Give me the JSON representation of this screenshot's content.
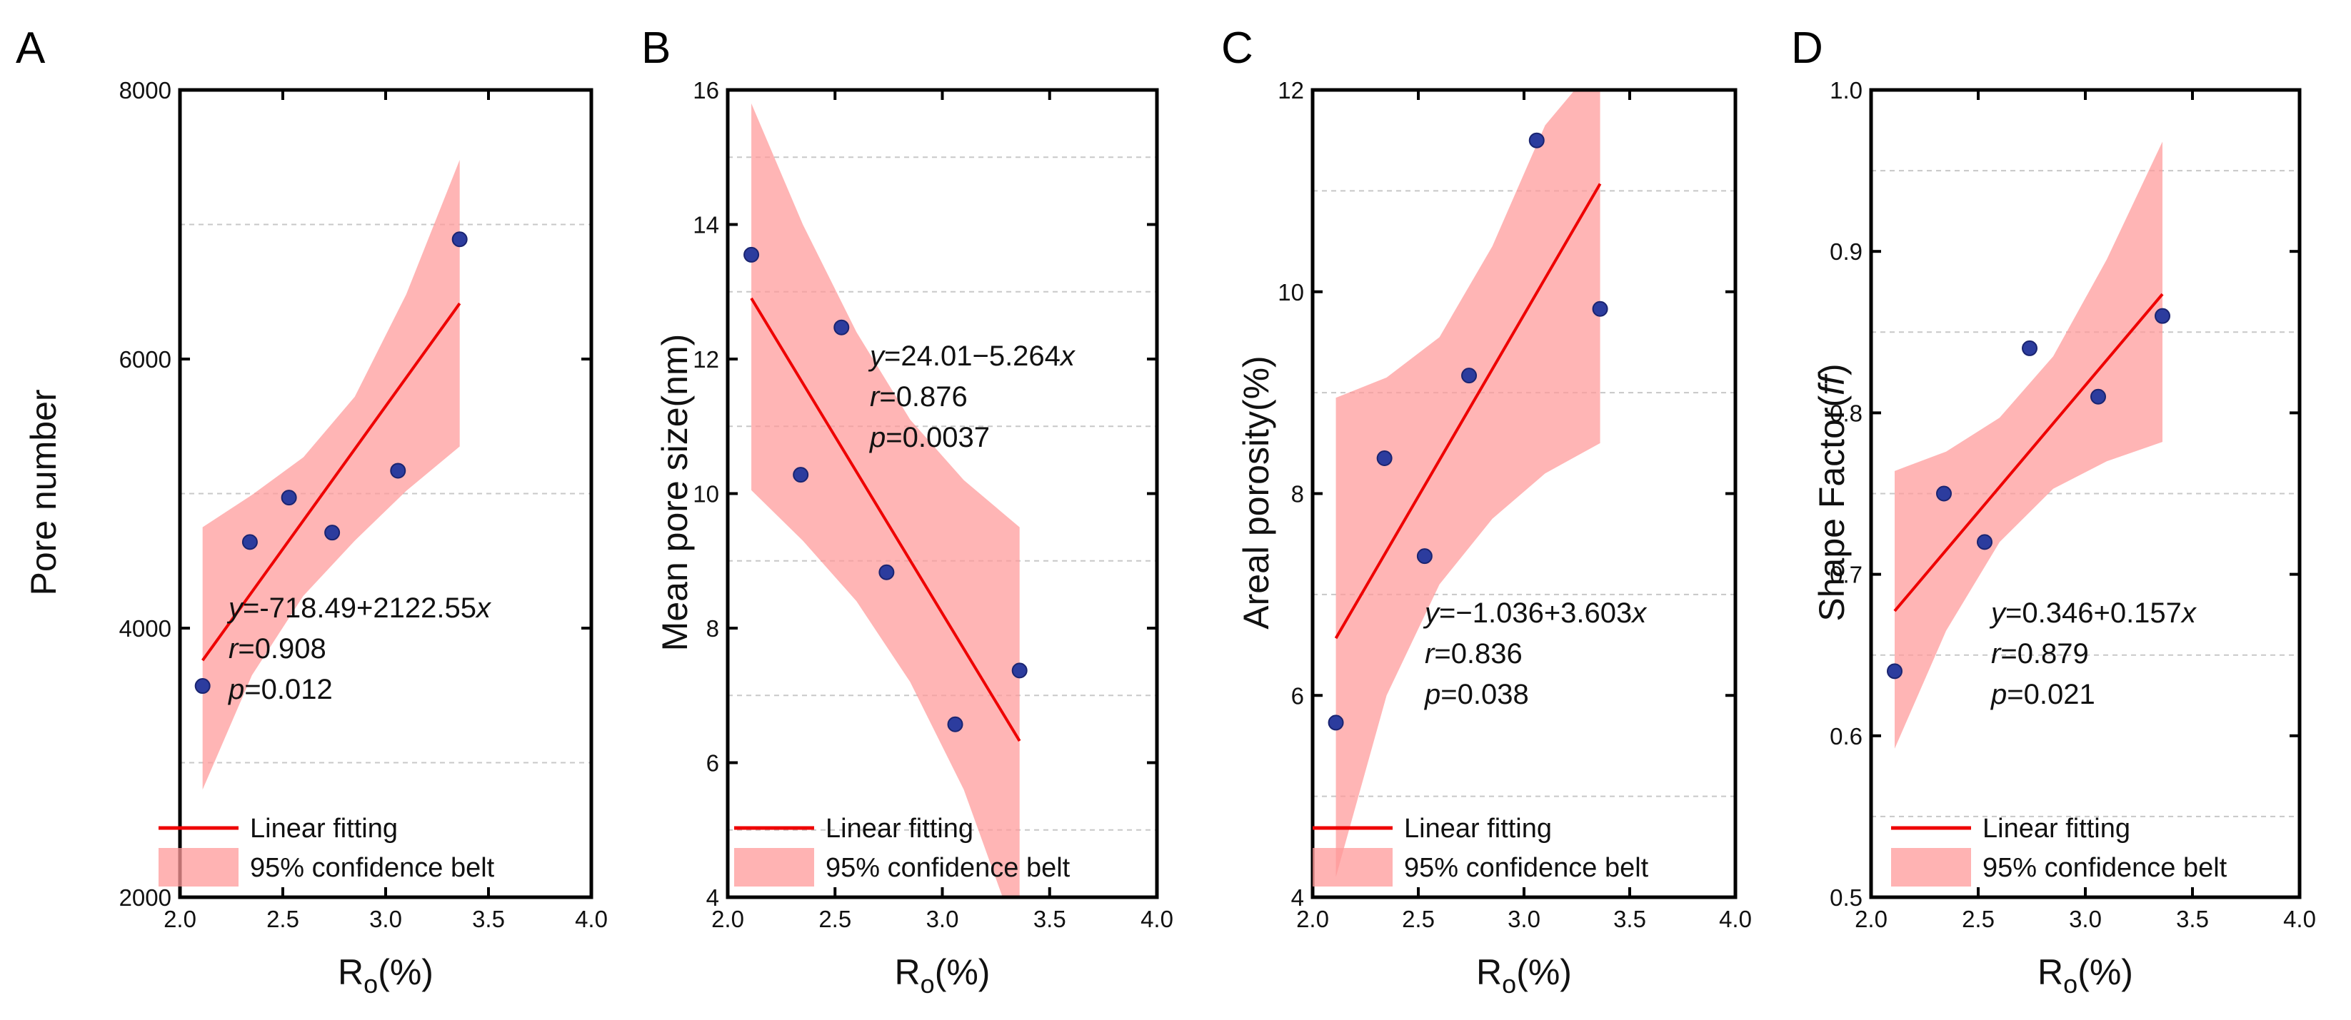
{
  "colors": {
    "fit_line": "#ee0000",
    "confidence_band": "#ff9999",
    "points": "#2c3c9e",
    "axis": "#000000",
    "grid": "#c8c8c8"
  },
  "chart_data": [
    {
      "panel": "A",
      "type": "scatter",
      "xlabel_main": "R",
      "xlabel_sub": "o",
      "xlabel_tail": "(%)",
      "ylabel": "Pore number",
      "xlim": [
        2.0,
        4.0
      ],
      "ylim": [
        2000,
        8000
      ],
      "xticks": [
        2.0,
        2.5,
        3.0,
        3.5,
        4.0
      ],
      "xtick_labels": [
        "2.0",
        "2.5",
        "3.0",
        "3.5",
        "4.0"
      ],
      "yticks": [
        2000,
        4000,
        6000,
        8000
      ],
      "ytick_labels": [
        "2000",
        "4000",
        "6000",
        "8000"
      ],
      "ygrid": [
        3000,
        5000,
        7000
      ],
      "points": {
        "x": [
          2.11,
          2.34,
          2.53,
          2.74,
          3.06,
          3.36
        ],
        "y": [
          3570,
          4640,
          4970,
          4710,
          5170,
          6890
        ]
      },
      "fit": {
        "intercept": -718.49,
        "slope": 2122.55,
        "x_range": [
          2.11,
          3.36
        ]
      },
      "band": {
        "x": [
          2.11,
          2.35,
          2.6,
          2.85,
          3.1,
          3.36
        ],
        "lower": [
          2800,
          3650,
          4240,
          4650,
          5020,
          5350
        ],
        "upper": [
          4750,
          4990,
          5270,
          5720,
          6480,
          7480
        ]
      },
      "annotation": {
        "equation": [
          "y",
          "=-718.49+2122.55",
          "x"
        ],
        "r_label": "r",
        "r_value": "=0.908",
        "p_label": "p",
        "p_value": "=0.012"
      },
      "legend": {
        "line_label": "Linear fitting",
        "band_label": "95% confidence belt"
      }
    },
    {
      "panel": "B",
      "type": "scatter",
      "xlabel_main": "R",
      "xlabel_sub": "o",
      "xlabel_tail": "(%)",
      "ylabel": "Mean pore size(nm)",
      "xlim": [
        2.0,
        4.0
      ],
      "ylim": [
        4,
        16
      ],
      "xticks": [
        2.0,
        2.5,
        3.0,
        3.5,
        4.0
      ],
      "xtick_labels": [
        "2.0",
        "2.5",
        "3.0",
        "3.5",
        "4.0"
      ],
      "yticks": [
        4,
        6,
        8,
        10,
        12,
        14,
        16
      ],
      "ytick_labels": [
        "4",
        "6",
        "8",
        "10",
        "12",
        "14",
        "16"
      ],
      "ygrid": [
        5,
        7,
        9,
        11,
        13,
        15
      ],
      "points": {
        "x": [
          2.11,
          2.34,
          2.53,
          2.74,
          3.06,
          3.36
        ],
        "y": [
          13.55,
          10.28,
          12.47,
          8.83,
          6.57,
          7.37
        ]
      },
      "fit": {
        "intercept": 24.01,
        "slope": -5.264,
        "x_range": [
          2.11,
          3.36
        ]
      },
      "band": {
        "x": [
          2.11,
          2.35,
          2.6,
          2.85,
          3.1,
          3.36
        ],
        "lower": [
          10.05,
          9.3,
          8.4,
          7.2,
          5.6,
          3.3
        ],
        "upper": [
          15.8,
          14.0,
          12.4,
          11.1,
          10.2,
          9.5
        ]
      },
      "annotation": {
        "equation": [
          "y",
          "=24.01−5.264",
          "x"
        ],
        "r_label": "r",
        "r_value": "=0.876",
        "p_label": "p",
        "p_value": "=0.0037"
      },
      "legend": {
        "line_label": "Linear fitting",
        "band_label": "95% confidence belt"
      }
    },
    {
      "panel": "C",
      "type": "scatter",
      "xlabel_main": "R",
      "xlabel_sub": "o",
      "xlabel_tail": "(%)",
      "ylabel": "Areal porosity(%)",
      "xlim": [
        2.0,
        4.0
      ],
      "ylim": [
        4,
        12
      ],
      "xticks": [
        2.0,
        2.5,
        3.0,
        3.5,
        4.0
      ],
      "xtick_labels": [
        "2.0",
        "2.5",
        "3.0",
        "3.5",
        "4.0"
      ],
      "yticks": [
        4,
        6,
        8,
        10,
        12
      ],
      "ytick_labels": [
        "4",
        "6",
        "8",
        "10",
        "12"
      ],
      "ygrid": [
        5,
        7,
        9,
        11
      ],
      "points": {
        "x": [
          2.11,
          2.34,
          2.53,
          2.74,
          3.06,
          3.36
        ],
        "y": [
          5.73,
          8.35,
          7.38,
          9.17,
          11.5,
          9.83
        ]
      },
      "fit": {
        "intercept": -1.036,
        "slope": 3.603,
        "x_range": [
          2.11,
          3.36
        ]
      },
      "band": {
        "x": [
          2.11,
          2.35,
          2.6,
          2.85,
          3.1,
          3.36
        ],
        "lower": [
          4.2,
          6.0,
          7.1,
          7.75,
          8.2,
          8.5
        ],
        "upper": [
          8.95,
          9.15,
          9.55,
          10.45,
          11.65,
          12.3
        ]
      },
      "annotation": {
        "equation": [
          "y",
          "=−1.036+3.603",
          "x"
        ],
        "r_label": "r",
        "r_value": "=0.836",
        "p_label": "p",
        "p_value": "=0.038"
      },
      "legend": {
        "line_label": "Linear fitting",
        "band_label": "95% confidence belt"
      }
    },
    {
      "panel": "D",
      "type": "scatter",
      "xlabel_main": "R",
      "xlabel_sub": "o",
      "xlabel_tail": "(%)",
      "ylabel": "Shape Factor(",
      "ylabel_italic": "ff",
      "ylabel_tail": ")",
      "xlim": [
        2.0,
        4.0
      ],
      "ylim": [
        0.5,
        1.0
      ],
      "xticks": [
        2.0,
        2.5,
        3.0,
        3.5,
        4.0
      ],
      "xtick_labels": [
        "2.0",
        "2.5",
        "3.0",
        "3.5",
        "4.0"
      ],
      "yticks": [
        0.5,
        0.6,
        0.7,
        0.8,
        0.9,
        1.0
      ],
      "ytick_labels": [
        "0.5",
        "0.6",
        "0.7",
        "0.8",
        "0.9",
        "1.0"
      ],
      "ygrid": [
        0.55,
        0.65,
        0.75,
        0.85,
        0.95
      ],
      "points": {
        "x": [
          2.11,
          2.34,
          2.53,
          2.74,
          3.06,
          3.36
        ],
        "y": [
          0.64,
          0.75,
          0.72,
          0.84,
          0.81,
          0.86
        ]
      },
      "fit": {
        "intercept": 0.346,
        "slope": 0.157,
        "x_range": [
          2.11,
          3.36
        ]
      },
      "band": {
        "x": [
          2.11,
          2.35,
          2.6,
          2.85,
          3.1,
          3.36
        ],
        "lower": [
          0.592,
          0.665,
          0.72,
          0.753,
          0.77,
          0.782
        ],
        "upper": [
          0.764,
          0.776,
          0.797,
          0.835,
          0.895,
          0.968
        ]
      },
      "annotation": {
        "equation": [
          "y",
          "=0.346+0.157",
          "x"
        ],
        "r_label": "r",
        "r_value": "=0.879",
        "p_label": "p",
        "p_value": "=0.021"
      },
      "legend": {
        "line_label": "Linear fitting",
        "band_label": "95% confidence belt"
      }
    }
  ]
}
